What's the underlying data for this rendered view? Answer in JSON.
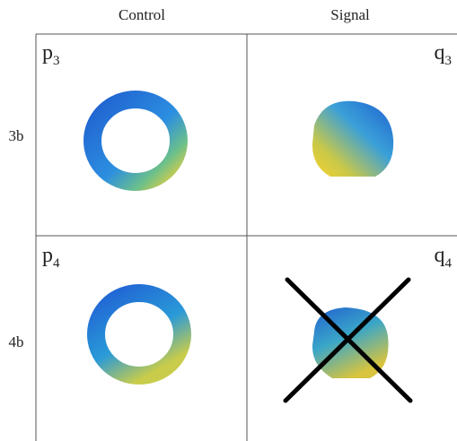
{
  "columns": [
    "Control",
    "Signal"
  ],
  "rows": [
    {
      "label": "3b",
      "cells": [
        {
          "letter": "p",
          "sub": "3"
        },
        {
          "letter": "q",
          "sub": "3"
        }
      ]
    },
    {
      "label": "4b",
      "cells": [
        {
          "letter": "p",
          "sub": "4"
        },
        {
          "letter": "q",
          "sub": "4"
        }
      ]
    }
  ]
}
